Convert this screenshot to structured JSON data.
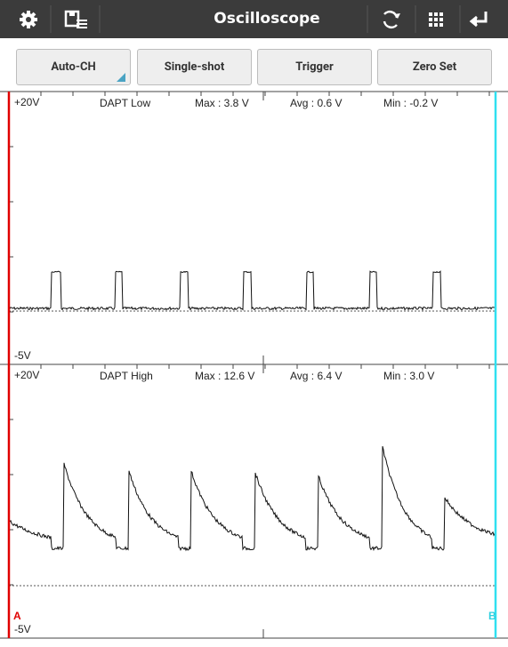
{
  "toolbar": {
    "title": "Oscilloscope"
  },
  "buttons": [
    "Auto-CH",
    "Single-shot",
    "Trigger",
    "Zero Set"
  ],
  "channels": [
    {
      "top_label": "+20V",
      "name": "DAPT Low",
      "max": "Max : 3.8 V",
      "avg": "Avg : 0.6 V",
      "min": "Min : -0.2 V",
      "bottom_label": "-5V"
    },
    {
      "top_label": "+20V",
      "name": "DAPT High",
      "max": "Max : 12.6 V",
      "avg": "Avg : 6.4 V",
      "min": "Min : 3.0 V",
      "bottom_label": "-5V"
    }
  ],
  "markers": {
    "a": "A",
    "b": "B"
  }
}
